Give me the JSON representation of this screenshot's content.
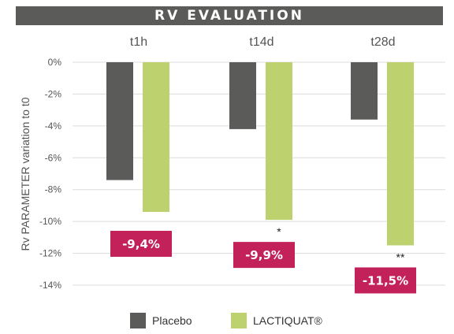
{
  "chart_data": {
    "type": "bar",
    "title": "RV EVALUATION",
    "ylabel": "Rv PARAMETER  variation to t0",
    "categories": [
      "t1h",
      "t14d",
      "t28d"
    ],
    "ylim": [
      -14,
      0
    ],
    "yticks": [
      0,
      -2,
      -4,
      -6,
      -8,
      -10,
      -12,
      -14
    ],
    "ytick_labels": [
      "0%",
      "-2%",
      "-4%",
      "-6%",
      "-8%",
      "-10%",
      "-12%",
      "-14%"
    ],
    "grid": true,
    "series": [
      {
        "name": "Placebo",
        "color": "#5b5b59",
        "values": [
          -7.4,
          -4.2,
          -3.6
        ]
      },
      {
        "name": "LACTIQUAT®",
        "color": "#bdd26f",
        "values": [
          -9.4,
          -9.9,
          -11.5
        ]
      }
    ],
    "value_labels": [
      "-9,4%",
      "-9,9%",
      "-11,5%"
    ],
    "significance": [
      "",
      "*",
      "**"
    ],
    "badge_color": "#c3215a",
    "legend_position": "bottom-center"
  }
}
